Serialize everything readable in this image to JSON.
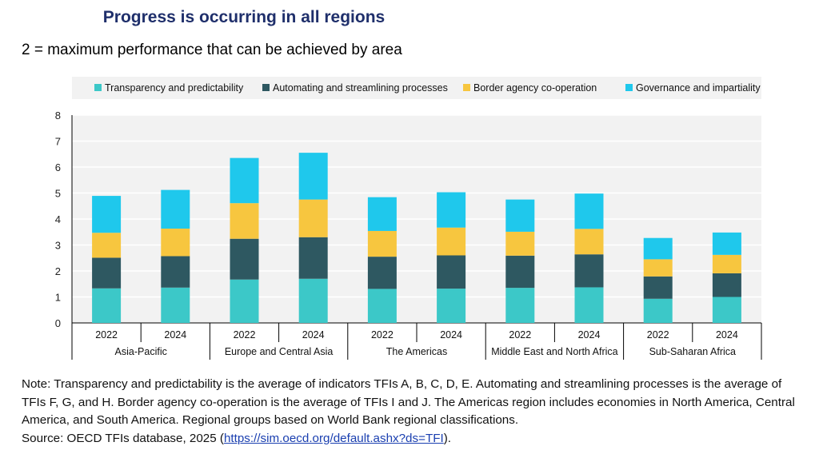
{
  "title": "Progress is occurring in all regions",
  "subtitle": "2 = maximum performance that can be achieved by area",
  "chart_data": {
    "type": "bar",
    "stacked": true,
    "groups": [
      "Asia-Pacific",
      "Europe and Central Asia",
      "The Americas",
      "Middle East and North Africa",
      "Sub-Saharan Africa"
    ],
    "categories": [
      "2022",
      "2024",
      "2022",
      "2024",
      "2022",
      "2024",
      "2022",
      "2024",
      "2022",
      "2024"
    ],
    "series": [
      {
        "name": "Transparency and predictability",
        "color": "#3cc8c8",
        "values": [
          1.33,
          1.36,
          1.67,
          1.7,
          1.31,
          1.32,
          1.35,
          1.37,
          0.93,
          1.0
        ]
      },
      {
        "name": "Automating and streamlining processes",
        "color": "#2e5861",
        "values": [
          1.18,
          1.21,
          1.57,
          1.6,
          1.24,
          1.28,
          1.24,
          1.27,
          0.86,
          0.91
        ]
      },
      {
        "name": "Border agency co-operation",
        "color": "#f7c63f",
        "values": [
          0.96,
          1.06,
          1.37,
          1.45,
          0.99,
          1.07,
          0.92,
          0.98,
          0.66,
          0.71
        ]
      },
      {
        "name": "Governance and impartiality",
        "color": "#1fc8ec",
        "values": [
          1.42,
          1.49,
          1.74,
          1.8,
          1.3,
          1.36,
          1.24,
          1.36,
          0.82,
          0.86
        ]
      }
    ],
    "ylim": [
      0,
      8
    ],
    "yticks": [
      "0",
      "1",
      "2",
      "3",
      "4",
      "5",
      "6",
      "7",
      "8"
    ],
    "grid": true,
    "legend_position": "top"
  },
  "note": {
    "text": "Note: Transparency and predictability is the average of indicators TFIs A, B, C, D, E. Automating and streamlining processes is the average of TFIs F, G, and H. Border agency co-operation is the average of TFIs I and J. The Americas region includes economies in North America, Central America, and South America. Regional groups based on World Bank regional classifications.",
    "source_prefix": "Source: OECD TFIs database, 2025 (",
    "source_link": "https://sim.oecd.org/default.ashx?ds=TFI",
    "source_suffix": ")."
  }
}
